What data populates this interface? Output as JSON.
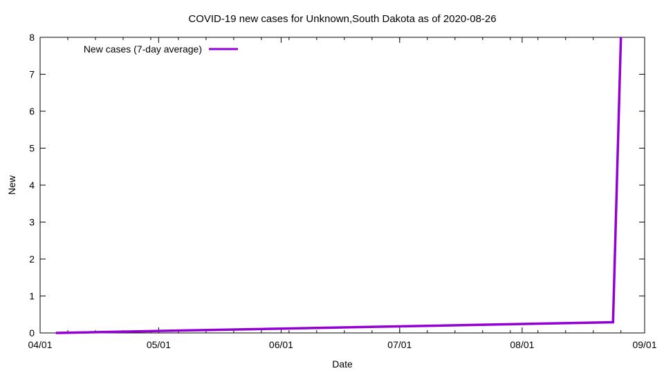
{
  "chart_data": {
    "type": "line",
    "title": "COVID-19 new cases for Unknown,South Dakota as of 2020-08-26",
    "xlabel": "Date",
    "ylabel": "New",
    "xlim": [
      "2020-04-01",
      "2020-09-01"
    ],
    "ylim": [
      0,
      8
    ],
    "x_ticks": [
      "04/01",
      "05/01",
      "06/01",
      "07/01",
      "08/01",
      "09/01"
    ],
    "x_tick_dates": [
      "2020-04-01",
      "2020-05-01",
      "2020-06-01",
      "2020-07-01",
      "2020-08-01",
      "2020-09-01"
    ],
    "y_ticks": [
      "0",
      "1",
      "2",
      "3",
      "4",
      "5",
      "6",
      "7",
      "8"
    ],
    "legend_position": "top-left",
    "grid": false,
    "series": [
      {
        "name": "New cases (7-day average)",
        "color": "#9400d3",
        "x": [
          "2020-04-05",
          "2020-08-24",
          "2020-08-26"
        ],
        "y": [
          0.0,
          0.29,
          8.0
        ]
      }
    ]
  }
}
